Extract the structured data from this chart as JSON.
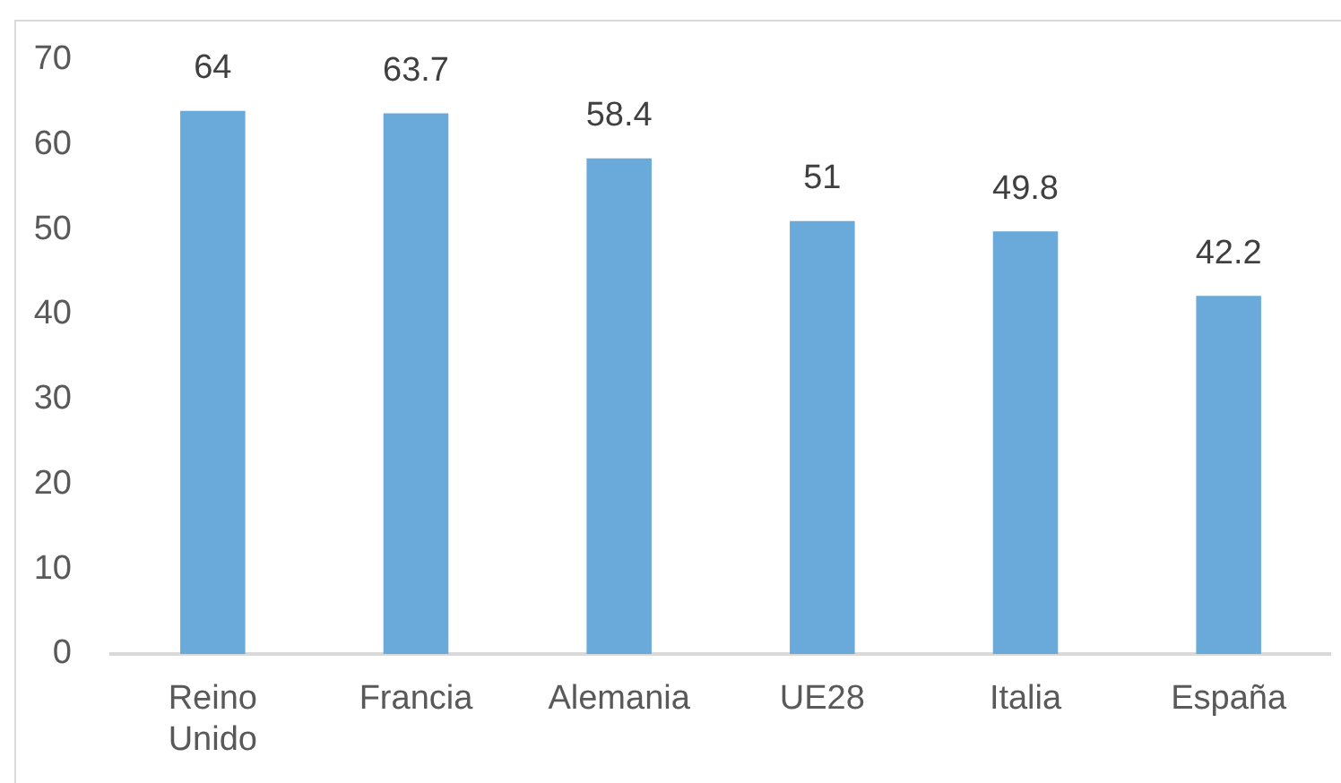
{
  "chart_data": {
    "type": "bar",
    "categories": [
      "Reino Unido",
      "Francia",
      "Alemania",
      "UE28",
      "Italia",
      "España"
    ],
    "values": [
      64,
      63.7,
      58.4,
      51,
      49.8,
      42.2
    ],
    "color": "#6aaadb",
    "ylim": [
      0,
      70
    ],
    "yticks": [
      0,
      10,
      20,
      30,
      40,
      50,
      60,
      70
    ],
    "data_labels": true
  }
}
